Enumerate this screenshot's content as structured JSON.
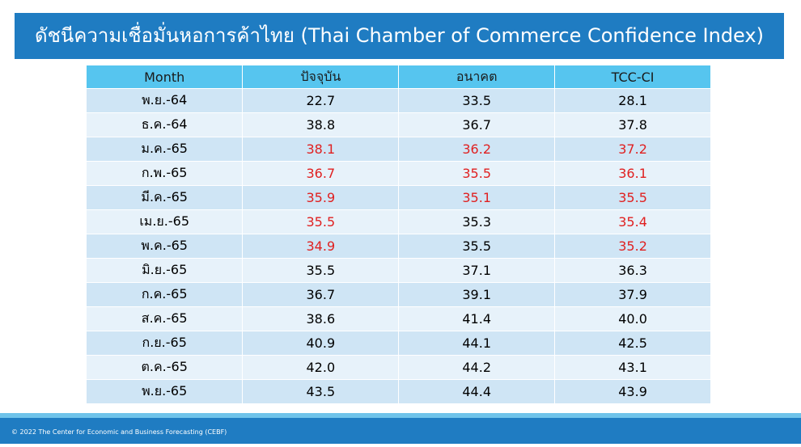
{
  "header": {
    "title": "ดัชนีความเชื่อมั่นหอการค้าไทย (Thai Chamber of Commerce Confidence Index)"
  },
  "table": {
    "columns": [
      "Month",
      "ปัจจุบัน",
      "อนาคต",
      "TCC-CI"
    ],
    "rows": [
      {
        "month": "พ.ย.-64",
        "values": [
          "22.7",
          "33.5",
          "28.1"
        ],
        "colors": [
          "#000000",
          "#000000",
          "#000000"
        ]
      },
      {
        "month": "ธ.ค.-64",
        "values": [
          "38.8",
          "36.7",
          "37.8"
        ],
        "colors": [
          "#000000",
          "#000000",
          "#000000"
        ]
      },
      {
        "month": "ม.ค.-65",
        "values": [
          "38.1",
          "36.2",
          "37.2"
        ],
        "colors": [
          "#e02020",
          "#e02020",
          "#e02020"
        ]
      },
      {
        "month": "ก.พ.-65",
        "values": [
          "36.7",
          "35.5",
          "36.1"
        ],
        "colors": [
          "#e02020",
          "#e02020",
          "#e02020"
        ]
      },
      {
        "month": "มี.ค.-65",
        "values": [
          "35.9",
          "35.1",
          "35.5"
        ],
        "colors": [
          "#e02020",
          "#e02020",
          "#e02020"
        ]
      },
      {
        "month": "เม.ย.-65",
        "values": [
          "35.5",
          "35.3",
          "35.4"
        ],
        "colors": [
          "#e02020",
          "#000000",
          "#e02020"
        ]
      },
      {
        "month": "พ.ค.-65",
        "values": [
          "34.9",
          "35.5",
          "35.2"
        ],
        "colors": [
          "#e02020",
          "#000000",
          "#e02020"
        ]
      },
      {
        "month": "มิ.ย.-65",
        "values": [
          "35.5",
          "37.1",
          "36.3"
        ],
        "colors": [
          "#000000",
          "#000000",
          "#000000"
        ]
      },
      {
        "month": "ก.ค.-65",
        "values": [
          "36.7",
          "39.1",
          "37.9"
        ],
        "colors": [
          "#000000",
          "#000000",
          "#000000"
        ]
      },
      {
        "month": "ส.ค.-65",
        "values": [
          "38.6",
          "41.4",
          "40.0"
        ],
        "colors": [
          "#000000",
          "#000000",
          "#000000"
        ]
      },
      {
        "month": "ก.ย.-65",
        "values": [
          "40.9",
          "44.1",
          "42.5"
        ],
        "colors": [
          "#000000",
          "#000000",
          "#000000"
        ]
      },
      {
        "month": "ต.ค.-65",
        "values": [
          "42.0",
          "44.2",
          "43.1"
        ],
        "colors": [
          "#000000",
          "#000000",
          "#000000"
        ]
      },
      {
        "month": "พ.ย.-65",
        "values": [
          "43.5",
          "44.4",
          "43.9"
        ],
        "colors": [
          "#000000",
          "#000000",
          "#000000"
        ]
      }
    ]
  },
  "footer": {
    "text": "© 2022 The Center for Economic and Business Forecasting (CEBF)"
  }
}
